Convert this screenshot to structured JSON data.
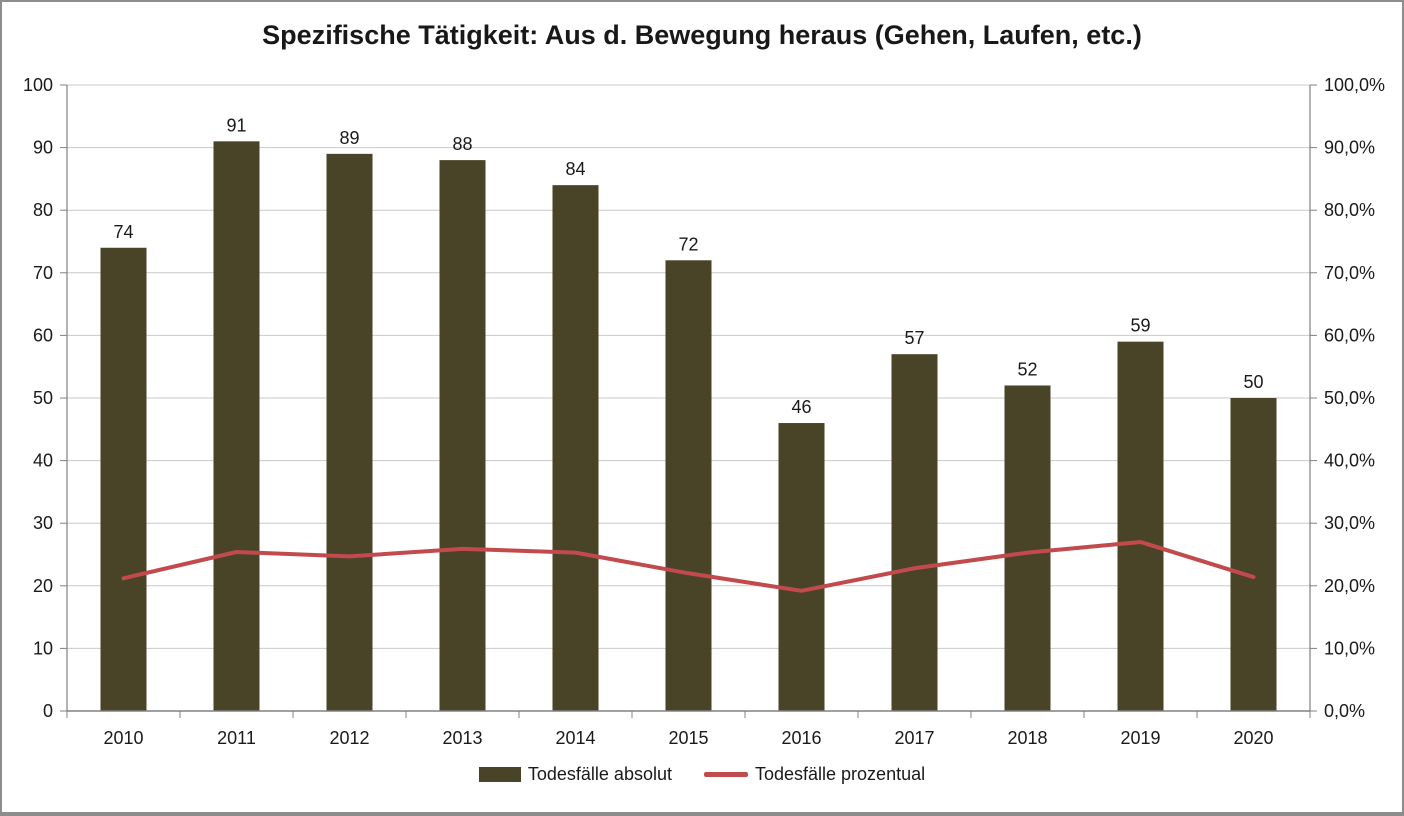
{
  "title": "Spezifische Tätigkeit: Aus d. Bewegung heraus (Gehen, Laufen, etc.)",
  "legend": {
    "items": [
      {
        "label": "Todesfälle absolut",
        "marker": "bar-swatch"
      },
      {
        "label": "Todesfälle prozentual",
        "marker": "line-swatch"
      }
    ]
  },
  "colors": {
    "bar": "#494327",
    "line": "#c24a4c",
    "gridline": "#c9c9c9",
    "axis": "#808080",
    "text": "#1a1a1a",
    "frame_border": "#8d8d8d"
  },
  "chart_data": {
    "type": "bar",
    "subtype": "combo-bar-line-dual-axis",
    "title": "Spezifische Tätigkeit: Aus d. Bewegung heraus (Gehen, Laufen, etc.)",
    "categories": [
      "2010",
      "2011",
      "2012",
      "2013",
      "2014",
      "2015",
      "2016",
      "2017",
      "2018",
      "2019",
      "2020"
    ],
    "series": [
      {
        "name": "Todesfälle absolut",
        "type": "bar",
        "axis": "left",
        "values": [
          74,
          91,
          89,
          88,
          84,
          72,
          46,
          57,
          52,
          59,
          50
        ],
        "data_labels_shown": true
      },
      {
        "name": "Todesfälle prozentual",
        "type": "line",
        "axis": "right",
        "values_percent": [
          21.2,
          25.4,
          24.7,
          25.9,
          25.3,
          22.0,
          19.2,
          22.8,
          25.3,
          27.0,
          21.4
        ]
      }
    ],
    "left_axis": {
      "min": 0,
      "max": 100,
      "step": 10,
      "tick_labels": [
        "0",
        "10",
        "20",
        "30",
        "40",
        "50",
        "60",
        "70",
        "80",
        "90",
        "100"
      ]
    },
    "right_axis": {
      "min": 0,
      "max": 100,
      "step": 10,
      "tick_labels": [
        "0,0%",
        "10,0%",
        "20,0%",
        "30,0%",
        "40,0%",
        "50,0%",
        "60,0%",
        "70,0%",
        "80,0%",
        "90,0%",
        "100,0%"
      ]
    },
    "grid": true,
    "legend_position": "bottom"
  }
}
